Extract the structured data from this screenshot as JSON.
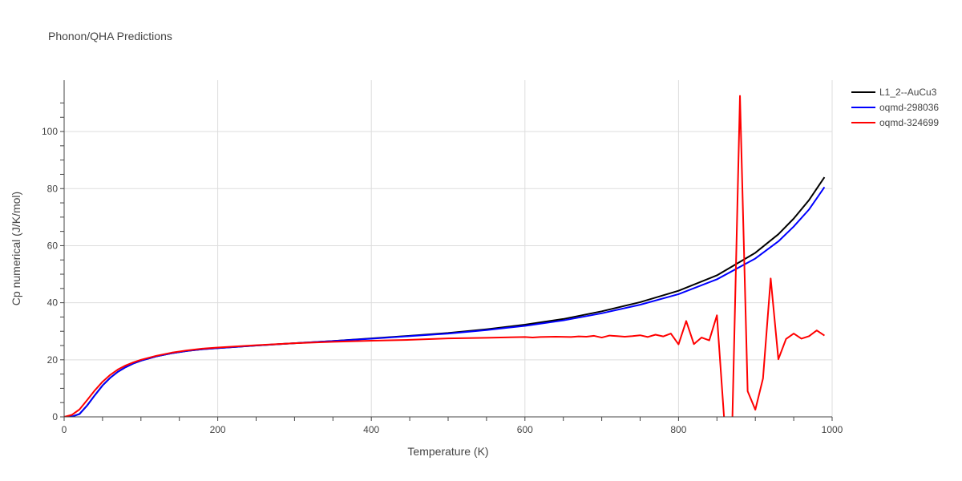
{
  "chart_data": {
    "type": "line",
    "title": "Phonon/QHA Predictions",
    "xlabel": "Temperature (K)",
    "ylabel": "Cp numerical (J/K/mol)",
    "xlim": [
      0,
      1000
    ],
    "ylim": [
      0,
      118
    ],
    "x_ticks": [
      0,
      200,
      400,
      600,
      800,
      1000
    ],
    "y_ticks": [
      0,
      20,
      40,
      60,
      80,
      100
    ],
    "grid": true,
    "legend_position": "top-right",
    "series": [
      {
        "name": "L1_2--AuCu3",
        "color": "#000000",
        "x": [
          0,
          10,
          20,
          30,
          40,
          50,
          60,
          70,
          80,
          90,
          100,
          120,
          140,
          160,
          180,
          200,
          250,
          300,
          350,
          400,
          450,
          500,
          550,
          600,
          650,
          700,
          750,
          800,
          850,
          900,
          930,
          950,
          970,
          990
        ],
        "y": [
          0,
          0.1,
          1.0,
          4.0,
          7.6,
          11.0,
          13.7,
          15.8,
          17.4,
          18.7,
          19.7,
          21.2,
          22.3,
          23.1,
          23.7,
          24.1,
          25.0,
          25.8,
          26.6,
          27.5,
          28.4,
          29.4,
          30.7,
          32.3,
          34.3,
          37.0,
          40.2,
          44.2,
          49.6,
          57.5,
          64.0,
          69.5,
          76.0,
          84.0
        ]
      },
      {
        "name": "oqmd-298036",
        "color": "#0000ff",
        "x": [
          0,
          10,
          20,
          30,
          40,
          50,
          60,
          70,
          80,
          90,
          100,
          120,
          140,
          160,
          180,
          200,
          250,
          300,
          350,
          400,
          450,
          500,
          550,
          600,
          650,
          700,
          750,
          800,
          850,
          900,
          930,
          950,
          970,
          990
        ],
        "y": [
          0,
          0.1,
          1.0,
          4.0,
          7.6,
          11.0,
          13.7,
          15.8,
          17.4,
          18.7,
          19.7,
          21.2,
          22.3,
          23.1,
          23.7,
          24.1,
          25.0,
          25.8,
          26.6,
          27.4,
          28.3,
          29.2,
          30.4,
          31.9,
          33.8,
          36.3,
          39.3,
          43.0,
          48.2,
          55.5,
          61.5,
          66.7,
          72.7,
          80.5
        ]
      },
      {
        "name": "oqmd-324699",
        "color": "#ff0000",
        "x": [
          0,
          10,
          20,
          30,
          40,
          50,
          60,
          70,
          80,
          90,
          100,
          120,
          140,
          160,
          180,
          200,
          250,
          300,
          350,
          400,
          450,
          500,
          550,
          600,
          610,
          620,
          640,
          660,
          670,
          680,
          690,
          700,
          710,
          720,
          730,
          740,
          750,
          760,
          770,
          780,
          790,
          800,
          810,
          820,
          830,
          840,
          850,
          860,
          870,
          880,
          890,
          900,
          910,
          920,
          930,
          940,
          950,
          960,
          970,
          980,
          990
        ],
        "y": [
          0,
          0.7,
          2.6,
          5.9,
          9.3,
          12.3,
          14.7,
          16.6,
          18.0,
          19.1,
          20.0,
          21.4,
          22.5,
          23.3,
          23.9,
          24.3,
          25.1,
          25.8,
          26.3,
          26.7,
          27.0,
          27.5,
          27.7,
          28.0,
          27.8,
          28.0,
          28.1,
          28.0,
          28.2,
          28.1,
          28.4,
          27.8,
          28.5,
          28.3,
          28.1,
          28.3,
          28.6,
          28.0,
          28.8,
          28.2,
          29.2,
          25.4,
          33.6,
          25.5,
          27.8,
          26.8,
          35.6,
          -3.0,
          -2.0,
          112.5,
          9.0,
          2.5,
          13.5,
          48.5,
          20.2,
          27.3,
          29.2,
          27.4,
          28.3,
          30.3,
          28.5
        ]
      }
    ]
  }
}
